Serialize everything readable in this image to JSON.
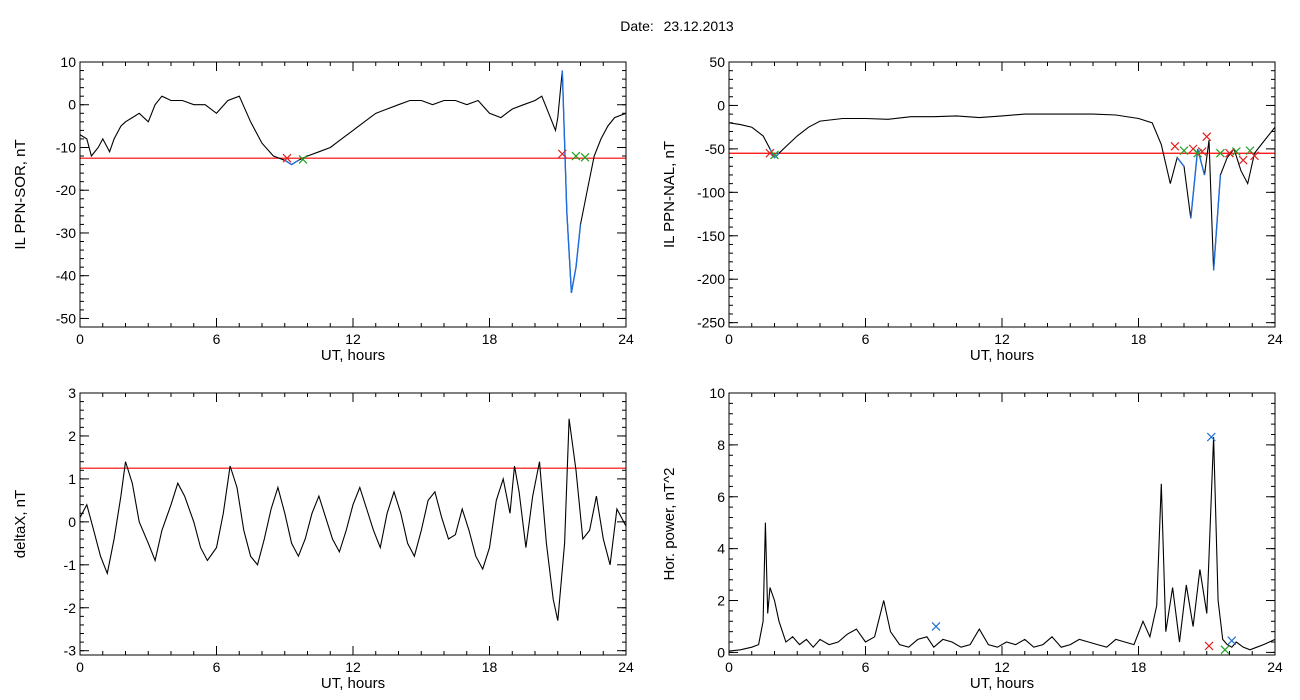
{
  "page_title": {
    "label": "Date:",
    "value": "23.12.2013"
  },
  "colors": {
    "trace": "#000000",
    "threshold": "#ff0000",
    "highlight": "#1f6fe0",
    "event_start": "#e02020",
    "event_end": "#20a020",
    "peak": "#1f70d0"
  },
  "chart_data": [
    {
      "id": "sor",
      "type": "line",
      "xlabel": "UT, hours",
      "ylabel": "IL PPN-SOR, nT",
      "xlim": [
        0,
        24
      ],
      "ylim": [
        -52,
        10
      ],
      "xticks": [
        0,
        6,
        12,
        18,
        24
      ],
      "yticks": [
        10,
        0,
        -10,
        -20,
        -30,
        -40,
        -50
      ],
      "threshold": -12.5,
      "series": [
        {
          "x": [
            0,
            0.3,
            0.5,
            0.8,
            1.0,
            1.3,
            1.5,
            1.8,
            2.0,
            2.3,
            2.6,
            3.0,
            3.3,
            3.6,
            4.0,
            4.5,
            5.0,
            5.5,
            6.0,
            6.5,
            7.0,
            7.5,
            8.0,
            8.5,
            9.0,
            9.3,
            9.6,
            10.0,
            10.5,
            11.0,
            11.5,
            12.0,
            12.5,
            13.0,
            13.5,
            14.0,
            14.5,
            15.0,
            15.5,
            16.0,
            16.5,
            17.0,
            17.5,
            18.0,
            18.5,
            19.0,
            19.5,
            20.0,
            20.3,
            20.6,
            20.9,
            21.0,
            21.2,
            21.4,
            21.6,
            21.8,
            22.0,
            22.3,
            22.6,
            22.9,
            23.2,
            23.5,
            24.0
          ],
          "y": [
            -7,
            -8,
            -12,
            -10,
            -8,
            -11,
            -8,
            -5,
            -4,
            -3,
            -2,
            -4,
            0,
            2,
            1,
            1,
            0,
            0,
            -2,
            1,
            2,
            -4,
            -9,
            -12,
            -13,
            -14,
            -13,
            -12,
            -11,
            -10,
            -8,
            -6,
            -4,
            -2,
            -1,
            0,
            1,
            1,
            0,
            1,
            1,
            0,
            1,
            -2,
            -3,
            -1,
            0,
            1,
            2,
            -2,
            -6,
            -3,
            8,
            -25,
            -44,
            -38,
            -28,
            -20,
            -12,
            -8,
            -5,
            -3,
            -2
          ]
        }
      ],
      "markers": [
        {
          "kind": "x",
          "color": "event_start",
          "x": 9.1,
          "y": -12.5
        },
        {
          "kind": "x",
          "color": "event_end",
          "x": 9.8,
          "y": -12.8
        },
        {
          "kind": "x",
          "color": "event_start",
          "x": 21.2,
          "y": -11.5
        },
        {
          "kind": "x",
          "color": "event_end",
          "x": 21.8,
          "y": -12.0
        },
        {
          "kind": "x",
          "color": "event_end",
          "x": 22.2,
          "y": -12.3
        }
      ],
      "highlight_ranges": [
        [
          9.0,
          9.7
        ],
        [
          21.1,
          22.2
        ]
      ]
    },
    {
      "id": "nal",
      "type": "line",
      "xlabel": "UT, hours",
      "ylabel": "IL PPN-NAL, nT",
      "xlim": [
        0,
        24
      ],
      "ylim": [
        -255,
        50
      ],
      "xticks": [
        0,
        6,
        12,
        18,
        24
      ],
      "yticks": [
        50,
        0,
        -50,
        -100,
        -150,
        -200,
        -250
      ],
      "threshold": -55,
      "series": [
        {
          "x": [
            0,
            0.5,
            1.0,
            1.5,
            1.8,
            2.0,
            2.2,
            2.6,
            3.0,
            3.5,
            4.0,
            5.0,
            6.0,
            7.0,
            8.0,
            9.0,
            10.0,
            11.0,
            12.0,
            13.0,
            14.0,
            15.0,
            16.0,
            17.0,
            18.0,
            18.6,
            19.0,
            19.4,
            19.7,
            20.0,
            20.3,
            20.6,
            20.9,
            21.1,
            21.3,
            21.6,
            21.9,
            22.2,
            22.5,
            22.8,
            23.1,
            23.4,
            24.0
          ],
          "y": [
            -20,
            -22,
            -25,
            -35,
            -50,
            -60,
            -55,
            -45,
            -35,
            -25,
            -18,
            -15,
            -15,
            -16,
            -13,
            -13,
            -12,
            -14,
            -12,
            -10,
            -10,
            -10,
            -10,
            -11,
            -15,
            -20,
            -45,
            -90,
            -60,
            -70,
            -130,
            -50,
            -80,
            -40,
            -190,
            -80,
            -60,
            -50,
            -75,
            -90,
            -55,
            -45,
            -25
          ]
        }
      ],
      "markers": [
        {
          "kind": "x",
          "color": "event_start",
          "x": 1.8,
          "y": -55
        },
        {
          "kind": "x",
          "color": "event_end",
          "x": 2.0,
          "y": -57
        },
        {
          "kind": "x",
          "color": "event_start",
          "x": 19.6,
          "y": -47
        },
        {
          "kind": "x",
          "color": "event_end",
          "x": 20.0,
          "y": -52
        },
        {
          "kind": "x",
          "color": "event_start",
          "x": 20.4,
          "y": -50
        },
        {
          "kind": "x",
          "color": "event_end",
          "x": 20.6,
          "y": -55
        },
        {
          "kind": "x",
          "color": "event_start",
          "x": 20.8,
          "y": -53
        },
        {
          "kind": "x",
          "color": "event_start",
          "x": 21.0,
          "y": -36
        },
        {
          "kind": "x",
          "color": "event_end",
          "x": 21.6,
          "y": -55
        },
        {
          "kind": "x",
          "color": "event_start",
          "x": 22.0,
          "y": -55
        },
        {
          "kind": "x",
          "color": "event_end",
          "x": 22.3,
          "y": -53
        },
        {
          "kind": "x",
          "color": "event_start",
          "x": 22.6,
          "y": -63
        },
        {
          "kind": "x",
          "color": "event_end",
          "x": 22.9,
          "y": -52
        },
        {
          "kind": "x",
          "color": "event_start",
          "x": 23.1,
          "y": -58
        }
      ],
      "highlight_ranges": [
        [
          1.8,
          2.2
        ],
        [
          19.7,
          20.1
        ],
        [
          20.3,
          20.9
        ],
        [
          21.2,
          21.8
        ]
      ]
    },
    {
      "id": "deltax",
      "type": "line",
      "xlabel": "UT, hours",
      "ylabel": "deltaX, nT",
      "xlim": [
        0,
        24
      ],
      "ylim": [
        -3.1,
        3
      ],
      "xticks": [
        0,
        6,
        12,
        18,
        24
      ],
      "yticks": [
        3,
        2,
        1,
        0,
        -1,
        -2,
        -3
      ],
      "threshold": 1.25,
      "series": [
        {
          "x": [
            0,
            0.3,
            0.6,
            0.9,
            1.2,
            1.5,
            1.8,
            2.0,
            2.3,
            2.6,
            3.0,
            3.3,
            3.6,
            4.0,
            4.3,
            4.6,
            5.0,
            5.3,
            5.6,
            6.0,
            6.3,
            6.6,
            6.9,
            7.2,
            7.5,
            7.8,
            8.1,
            8.4,
            8.7,
            9.0,
            9.3,
            9.6,
            9.9,
            10.2,
            10.5,
            10.8,
            11.1,
            11.4,
            11.7,
            12.0,
            12.3,
            12.6,
            12.9,
            13.2,
            13.5,
            13.8,
            14.1,
            14.4,
            14.7,
            15.0,
            15.3,
            15.6,
            15.9,
            16.2,
            16.5,
            16.8,
            17.1,
            17.4,
            17.7,
            18.0,
            18.3,
            18.6,
            18.9,
            19.1,
            19.3,
            19.6,
            19.9,
            20.2,
            20.5,
            20.8,
            21.0,
            21.3,
            21.5,
            21.8,
            22.1,
            22.4,
            22.7,
            23.0,
            23.3,
            23.6,
            24.0
          ],
          "y": [
            0.1,
            0.4,
            -0.2,
            -0.8,
            -1.2,
            -0.4,
            0.6,
            1.4,
            0.9,
            0.0,
            -0.5,
            -0.9,
            -0.2,
            0.4,
            0.9,
            0.6,
            0.0,
            -0.6,
            -0.9,
            -0.6,
            0.2,
            1.3,
            0.8,
            -0.2,
            -0.8,
            -1.0,
            -0.4,
            0.3,
            0.8,
            0.2,
            -0.5,
            -0.8,
            -0.4,
            0.2,
            0.6,
            0.1,
            -0.4,
            -0.7,
            -0.2,
            0.4,
            0.8,
            0.3,
            -0.2,
            -0.6,
            0.2,
            0.7,
            0.2,
            -0.5,
            -0.8,
            -0.2,
            0.5,
            0.7,
            0.1,
            -0.4,
            -0.3,
            0.3,
            -0.2,
            -0.8,
            -1.1,
            -0.6,
            0.5,
            1.0,
            0.2,
            1.3,
            0.7,
            -0.6,
            0.6,
            1.4,
            -0.5,
            -1.8,
            -2.3,
            -0.5,
            2.4,
            1.2,
            -0.4,
            -0.2,
            0.6,
            -0.4,
            -1.0,
            0.3,
            -0.1
          ]
        }
      ],
      "markers": [],
      "highlight_ranges": []
    },
    {
      "id": "hpower",
      "type": "line",
      "xlabel": "UT, hours",
      "ylabel": "Hor. power, nT^2",
      "xlim": [
        0,
        24
      ],
      "ylim": [
        -0.1,
        10
      ],
      "xticks": [
        0,
        6,
        12,
        18,
        24
      ],
      "yticks": [
        10,
        8,
        6,
        4,
        2,
        0
      ],
      "threshold": null,
      "series": [
        {
          "x": [
            0,
            0.5,
            1.0,
            1.3,
            1.5,
            1.6,
            1.7,
            1.8,
            2.0,
            2.2,
            2.5,
            2.8,
            3.1,
            3.4,
            3.7,
            4.0,
            4.4,
            4.8,
            5.2,
            5.6,
            6.0,
            6.4,
            6.8,
            7.1,
            7.5,
            7.9,
            8.3,
            8.7,
            9.0,
            9.4,
            9.8,
            10.2,
            10.6,
            11.0,
            11.4,
            11.8,
            12.2,
            12.6,
            13.0,
            13.4,
            13.8,
            14.2,
            14.6,
            15.0,
            15.4,
            15.8,
            16.2,
            16.6,
            17.0,
            17.4,
            17.8,
            18.2,
            18.5,
            18.8,
            19.0,
            19.2,
            19.5,
            19.8,
            20.1,
            20.4,
            20.7,
            21.0,
            21.3,
            21.5,
            21.7,
            21.9,
            22.1,
            22.3,
            22.6,
            22.9,
            23.2,
            23.5,
            24.0
          ],
          "y": [
            0.05,
            0.1,
            0.2,
            0.3,
            1.2,
            5.0,
            1.5,
            2.5,
            2.0,
            1.2,
            0.4,
            0.6,
            0.3,
            0.5,
            0.2,
            0.5,
            0.3,
            0.4,
            0.7,
            0.9,
            0.4,
            0.6,
            2.0,
            0.8,
            0.3,
            0.2,
            0.5,
            0.6,
            0.2,
            0.5,
            0.4,
            0.2,
            0.3,
            0.9,
            0.3,
            0.2,
            0.4,
            0.3,
            0.5,
            0.2,
            0.3,
            0.6,
            0.2,
            0.3,
            0.5,
            0.4,
            0.3,
            0.2,
            0.5,
            0.4,
            0.3,
            1.2,
            0.6,
            1.8,
            6.5,
            0.8,
            2.5,
            0.4,
            2.6,
            1.0,
            3.2,
            1.5,
            8.3,
            2.0,
            0.5,
            0.3,
            0.2,
            0.4,
            0.2,
            0.1,
            0.2,
            0.3,
            0.5
          ]
        }
      ],
      "markers": [
        {
          "kind": "x",
          "color": "peak",
          "x": 9.1,
          "y": 1.0
        },
        {
          "kind": "x",
          "color": "peak",
          "x": 21.2,
          "y": 8.3
        },
        {
          "kind": "x",
          "color": "event_start",
          "x": 21.1,
          "y": 0.25
        },
        {
          "kind": "x",
          "color": "peak",
          "x": 22.1,
          "y": 0.45
        },
        {
          "kind": "x",
          "color": "event_end",
          "x": 21.8,
          "y": 0.1
        }
      ],
      "highlight_ranges": []
    }
  ]
}
